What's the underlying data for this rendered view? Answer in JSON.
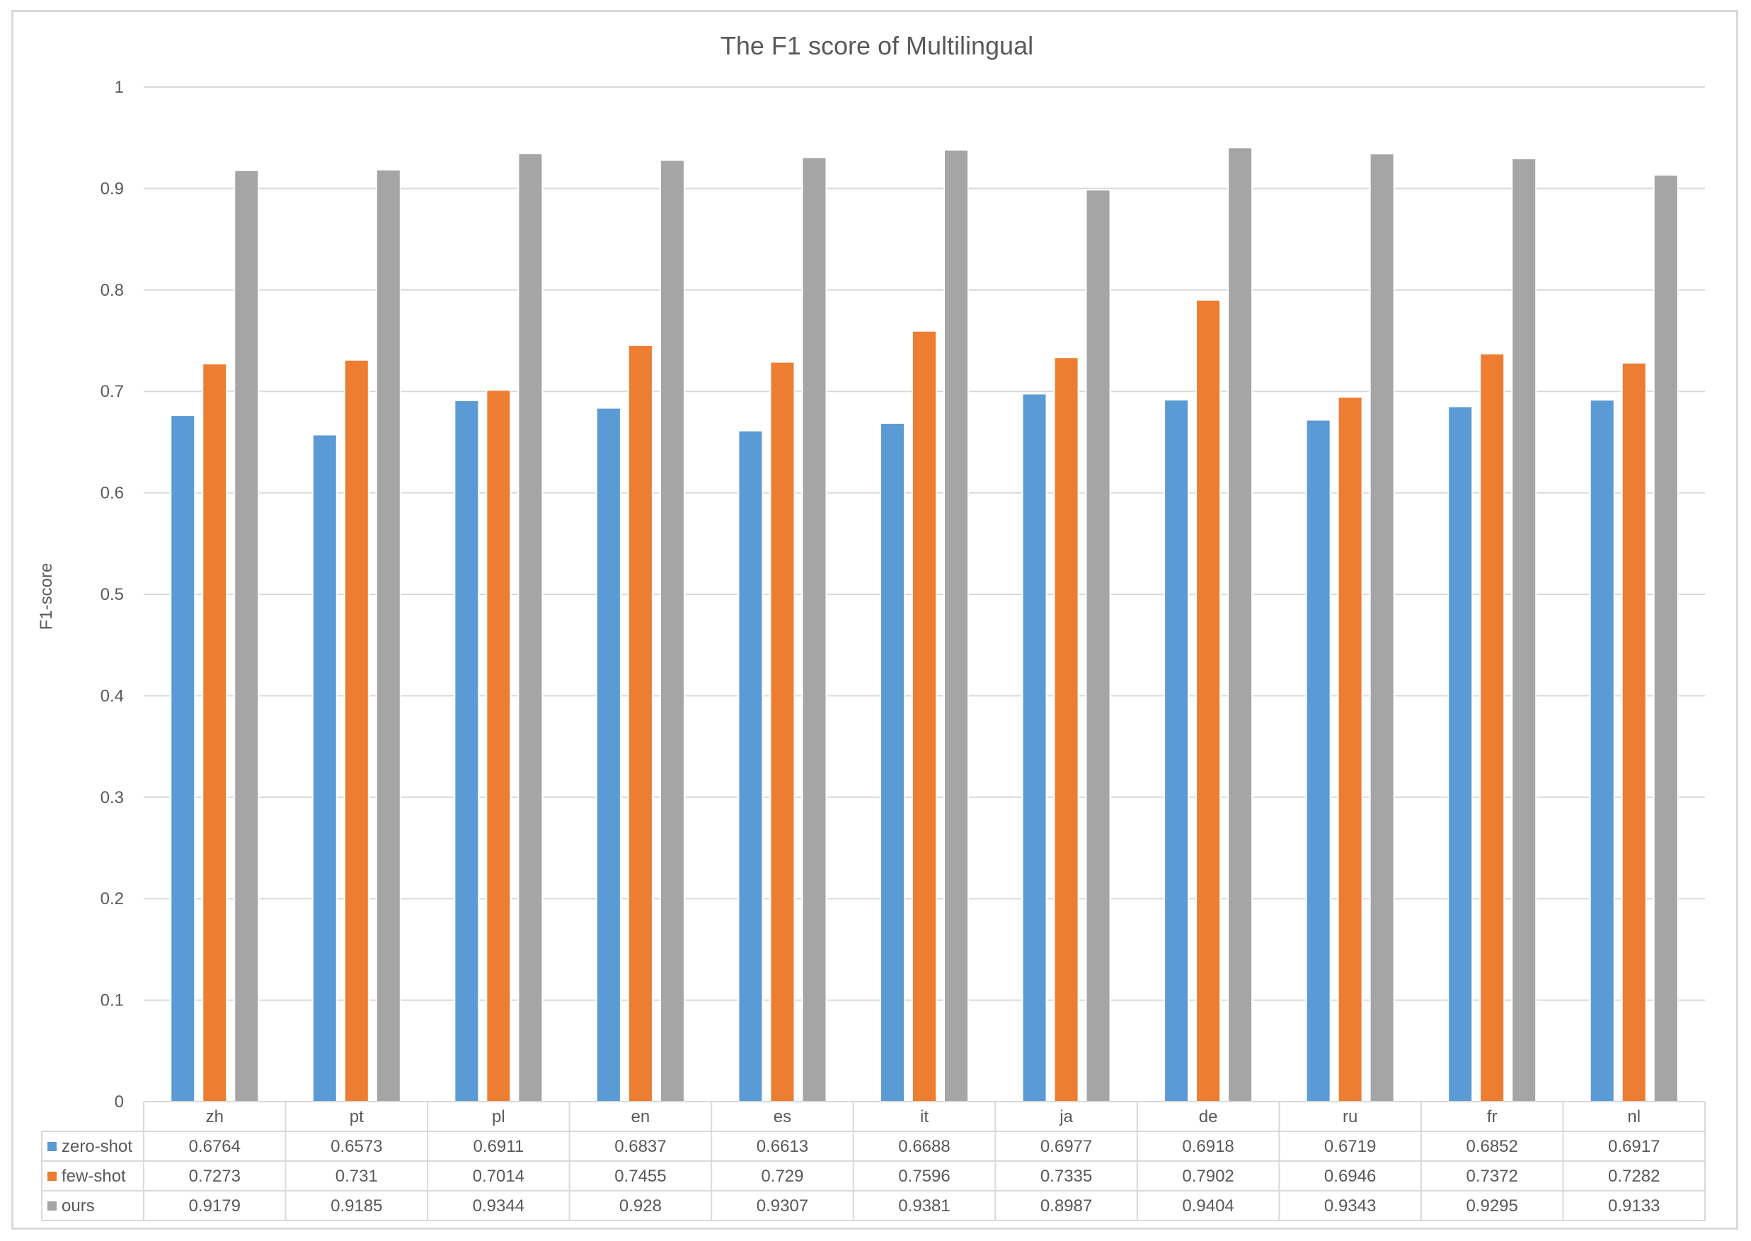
{
  "chart_data": {
    "type": "bar",
    "title": "The F1 score of Multilingual",
    "xlabel": "",
    "ylabel": "F1-score",
    "ylim": [
      0,
      1
    ],
    "yticks": [
      "0",
      "0.1",
      "0.2",
      "0.3",
      "0.4",
      "0.5",
      "0.6",
      "0.7",
      "0.8",
      "0.9",
      "1"
    ],
    "grid": true,
    "legend": "data-table",
    "categories": [
      "zh",
      "pt",
      "pl",
      "en",
      "es",
      "it",
      "ja",
      "de",
      "ru",
      "fr",
      "nl"
    ],
    "series": [
      {
        "name": "zero-shot",
        "color": "#5b9bd5",
        "values": [
          0.6764,
          0.6573,
          0.6911,
          0.6837,
          0.6613,
          0.6688,
          0.6977,
          0.6918,
          0.6719,
          0.6852,
          0.6917
        ],
        "labels": [
          "0.6764",
          "0.6573",
          "0.6911",
          "0.6837",
          "0.6613",
          "0.6688",
          "0.6977",
          "0.6918",
          "0.6719",
          "0.6852",
          "0.6917"
        ]
      },
      {
        "name": "few-shot",
        "color": "#ed7d31",
        "values": [
          0.7273,
          0.731,
          0.7014,
          0.7455,
          0.729,
          0.7596,
          0.7335,
          0.7902,
          0.6946,
          0.7372,
          0.7282
        ],
        "labels": [
          "0.7273",
          "0.731",
          "0.7014",
          "0.7455",
          "0.729",
          "0.7596",
          "0.7335",
          "0.7902",
          "0.6946",
          "0.7372",
          "0.7282"
        ]
      },
      {
        "name": "ours",
        "color": "#a5a5a5",
        "values": [
          0.9179,
          0.9185,
          0.9344,
          0.928,
          0.9307,
          0.9381,
          0.8987,
          0.9404,
          0.9343,
          0.9295,
          0.9133
        ],
        "labels": [
          "0.9179",
          "0.9185",
          "0.9344",
          "0.928",
          "0.9307",
          "0.9381",
          "0.8987",
          "0.9404",
          "0.9343",
          "0.9295",
          "0.9133"
        ]
      }
    ]
  }
}
